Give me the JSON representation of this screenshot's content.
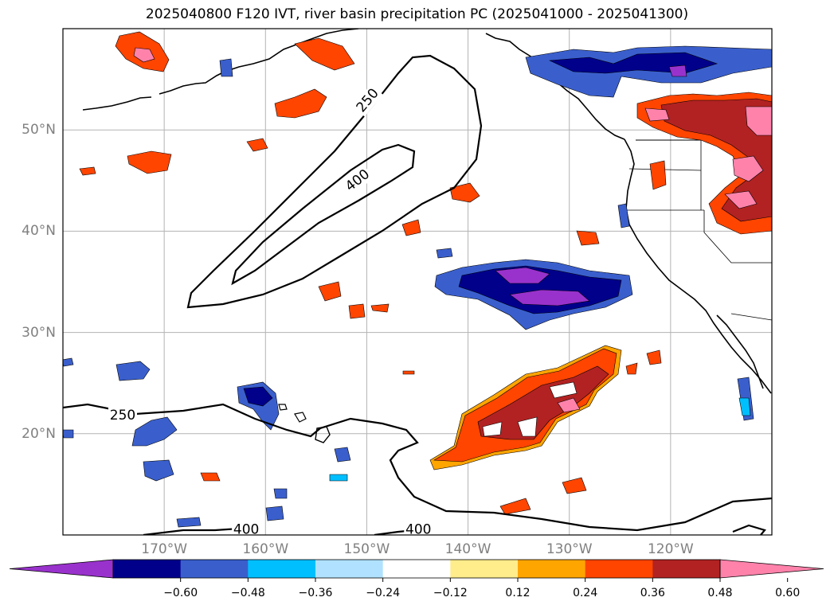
{
  "title": "2025040800 F120 IVT, river basin precipitation PC (2025041000 - 2025041300)",
  "map": {
    "lon_range": [
      -180,
      -110
    ],
    "lat_range": [
      10,
      60
    ],
    "lon_ticks": [
      {
        "value": -170,
        "label": "170°W"
      },
      {
        "value": -160,
        "label": "160°W"
      },
      {
        "value": -150,
        "label": "150°W"
      },
      {
        "value": -140,
        "label": "140°W"
      },
      {
        "value": -130,
        "label": "130°W"
      },
      {
        "value": -120,
        "label": "120°W"
      }
    ],
    "lat_ticks": [
      {
        "value": 50,
        "label": "50°N"
      },
      {
        "value": 40,
        "label": "40°N"
      },
      {
        "value": 30,
        "label": "30°N"
      },
      {
        "value": 20,
        "label": "20°N"
      }
    ],
    "gridlines": true,
    "ivt_contour_labels": [
      {
        "text": "250",
        "lon": -149.9,
        "lat": 52.9,
        "rotate": -50
      },
      {
        "text": "400",
        "lon": -150.9,
        "lat": 45.0,
        "rotate": -38
      },
      {
        "text": "250",
        "lon": -174.1,
        "lat": 21.8,
        "rotate": 0
      },
      {
        "text": "400",
        "lon": -161.9,
        "lat": 10.5,
        "rotate": 0
      },
      {
        "text": "400",
        "lon": -144.9,
        "lat": 10.5,
        "rotate": 0
      }
    ]
  },
  "colorbar": {
    "colors": [
      "#9932cc",
      "#00008b",
      "#3a5fcd",
      "#00bfff",
      "#b0e2ff",
      "#ffffff",
      "#ffec8b",
      "#ffa500",
      "#ff4500",
      "#b22222",
      "#ff82ab"
    ],
    "ticks": [
      "−0.60",
      "−0.48",
      "−0.36",
      "−0.24",
      "−0.12",
      "0.12",
      "0.24",
      "0.36",
      "0.48",
      "0.60"
    ]
  },
  "chart_data": {
    "type": "map",
    "variable": "river basin precipitation PC",
    "contour_variable": "IVT",
    "contour_levels": [
      250,
      400
    ],
    "fill_levels": [
      -0.6,
      -0.48,
      -0.36,
      -0.24,
      -0.12,
      0.12,
      0.24,
      0.36,
      0.48,
      0.6
    ]
  }
}
